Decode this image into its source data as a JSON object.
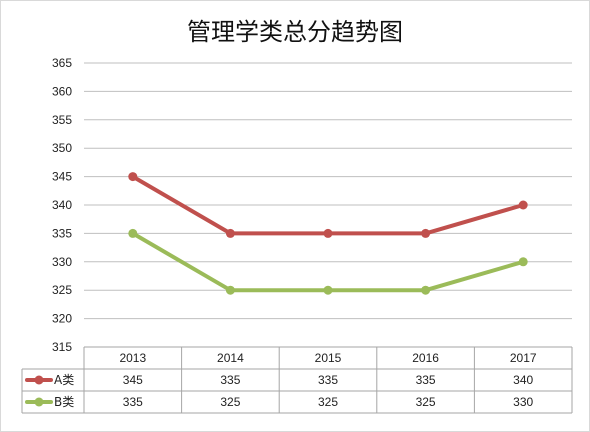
{
  "chart_data": {
    "type": "line",
    "title": "管理学类总分趋势图",
    "xlabel": "",
    "ylabel": "",
    "categories": [
      "2013",
      "2014",
      "2015",
      "2016",
      "2017"
    ],
    "y_ticks": [
      315,
      320,
      325,
      330,
      335,
      340,
      345,
      350,
      355,
      360,
      365
    ],
    "ylim": [
      315,
      365
    ],
    "grid": true,
    "legend_placement": "data-table-left",
    "series": [
      {
        "name": "A类",
        "color": "#c0504d",
        "values": [
          345,
          335,
          335,
          335,
          340
        ]
      },
      {
        "name": "B类",
        "color": "#9bbb59",
        "values": [
          335,
          325,
          325,
          325,
          330
        ]
      }
    ]
  }
}
